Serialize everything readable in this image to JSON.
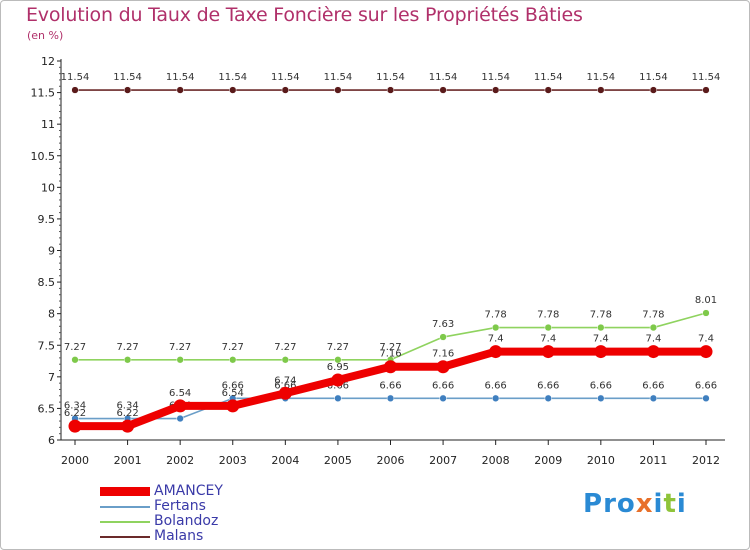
{
  "title": "Evolution du Taux de Taxe Foncière sur les Propriétés Bâties",
  "subtitle": "(en %)",
  "logo": {
    "text": "Proxiti",
    "colors": [
      "#2a8ad4",
      "#2a8ad4",
      "#2a8ad4",
      "#e8702a",
      "#2a8ad4",
      "#8fc43a",
      "#2a8ad4"
    ]
  },
  "chart_data": {
    "type": "line",
    "title": "Evolution du Taux de Taxe Foncière sur les Propriétés Bâties",
    "ylabel": "(en %)",
    "xlabel": "",
    "ylim": [
      6,
      12
    ],
    "y_ticks": [
      6,
      6.5,
      7,
      7.5,
      8,
      8.5,
      9,
      9.5,
      10,
      10.5,
      11,
      11.5,
      12
    ],
    "y_tick_labels": [
      "6",
      "6.5",
      "7",
      "7.5",
      "8",
      "8.5",
      "9",
      "9.5",
      "10",
      "10.5",
      "11",
      "11.5",
      "12"
    ],
    "categories": [
      "2000",
      "2001",
      "2002",
      "2003",
      "2004",
      "2005",
      "2006",
      "2007",
      "2008",
      "2009",
      "2010",
      "2011",
      "2012"
    ],
    "series": [
      {
        "name": "Malans",
        "color": "#6b2a2a",
        "values": [
          11.54,
          11.54,
          11.54,
          11.54,
          11.54,
          11.54,
          11.54,
          11.54,
          11.54,
          11.54,
          11.54,
          11.54,
          11.54
        ],
        "labels": [
          "11.54",
          "11.54",
          "11.54",
          "11.54",
          "11.54",
          "11.54",
          "11.54",
          "11.54",
          "11.54",
          "11.54",
          "11.54",
          "11.54",
          "11.54"
        ]
      },
      {
        "name": "Bolandoz",
        "color": "#8fd35f",
        "values": [
          7.27,
          7.27,
          7.27,
          7.27,
          7.27,
          7.27,
          7.27,
          7.63,
          7.78,
          7.78,
          7.78,
          7.78,
          8.01
        ],
        "labels": [
          "7.27",
          "7.27",
          "7.27",
          "7.27",
          "7.27",
          "7.27",
          "7.27",
          "7.63",
          "7.78",
          "7.78",
          "7.78",
          "7.78",
          "8.01"
        ]
      },
      {
        "name": "Fertans",
        "color": "#6a9ec8",
        "values": [
          6.34,
          6.34,
          6.34,
          6.66,
          6.66,
          6.66,
          6.66,
          6.66,
          6.66,
          6.66,
          6.66,
          6.66,
          6.66
        ],
        "labels": [
          "6.34",
          "6.34",
          "6.34",
          "6.66",
          "6.66",
          "6.66",
          "6.66",
          "6.66",
          "6.66",
          "6.66",
          "6.66",
          "6.66",
          "6.66"
        ]
      },
      {
        "name": "AMANCEY",
        "color": "#ee0000",
        "values": [
          6.22,
          6.22,
          6.54,
          6.54,
          6.74,
          6.95,
          7.16,
          7.16,
          7.4,
          7.4,
          7.4,
          7.4,
          7.4
        ],
        "labels": [
          "6.22",
          "6.22",
          "6.54",
          "6.54",
          "6.74",
          "6.95",
          "7.16",
          "7.16",
          "7.4",
          "7.4",
          "7.4",
          "7.4",
          "7.4"
        ]
      }
    ],
    "legend": [
      "AMANCEY",
      "Fertans",
      "Bolandoz",
      "Malans"
    ],
    "legend_colors": [
      "#ee0000",
      "#6a9ec8",
      "#8fd35f",
      "#6b2a2a"
    ],
    "legend_position": "bottom-left"
  }
}
